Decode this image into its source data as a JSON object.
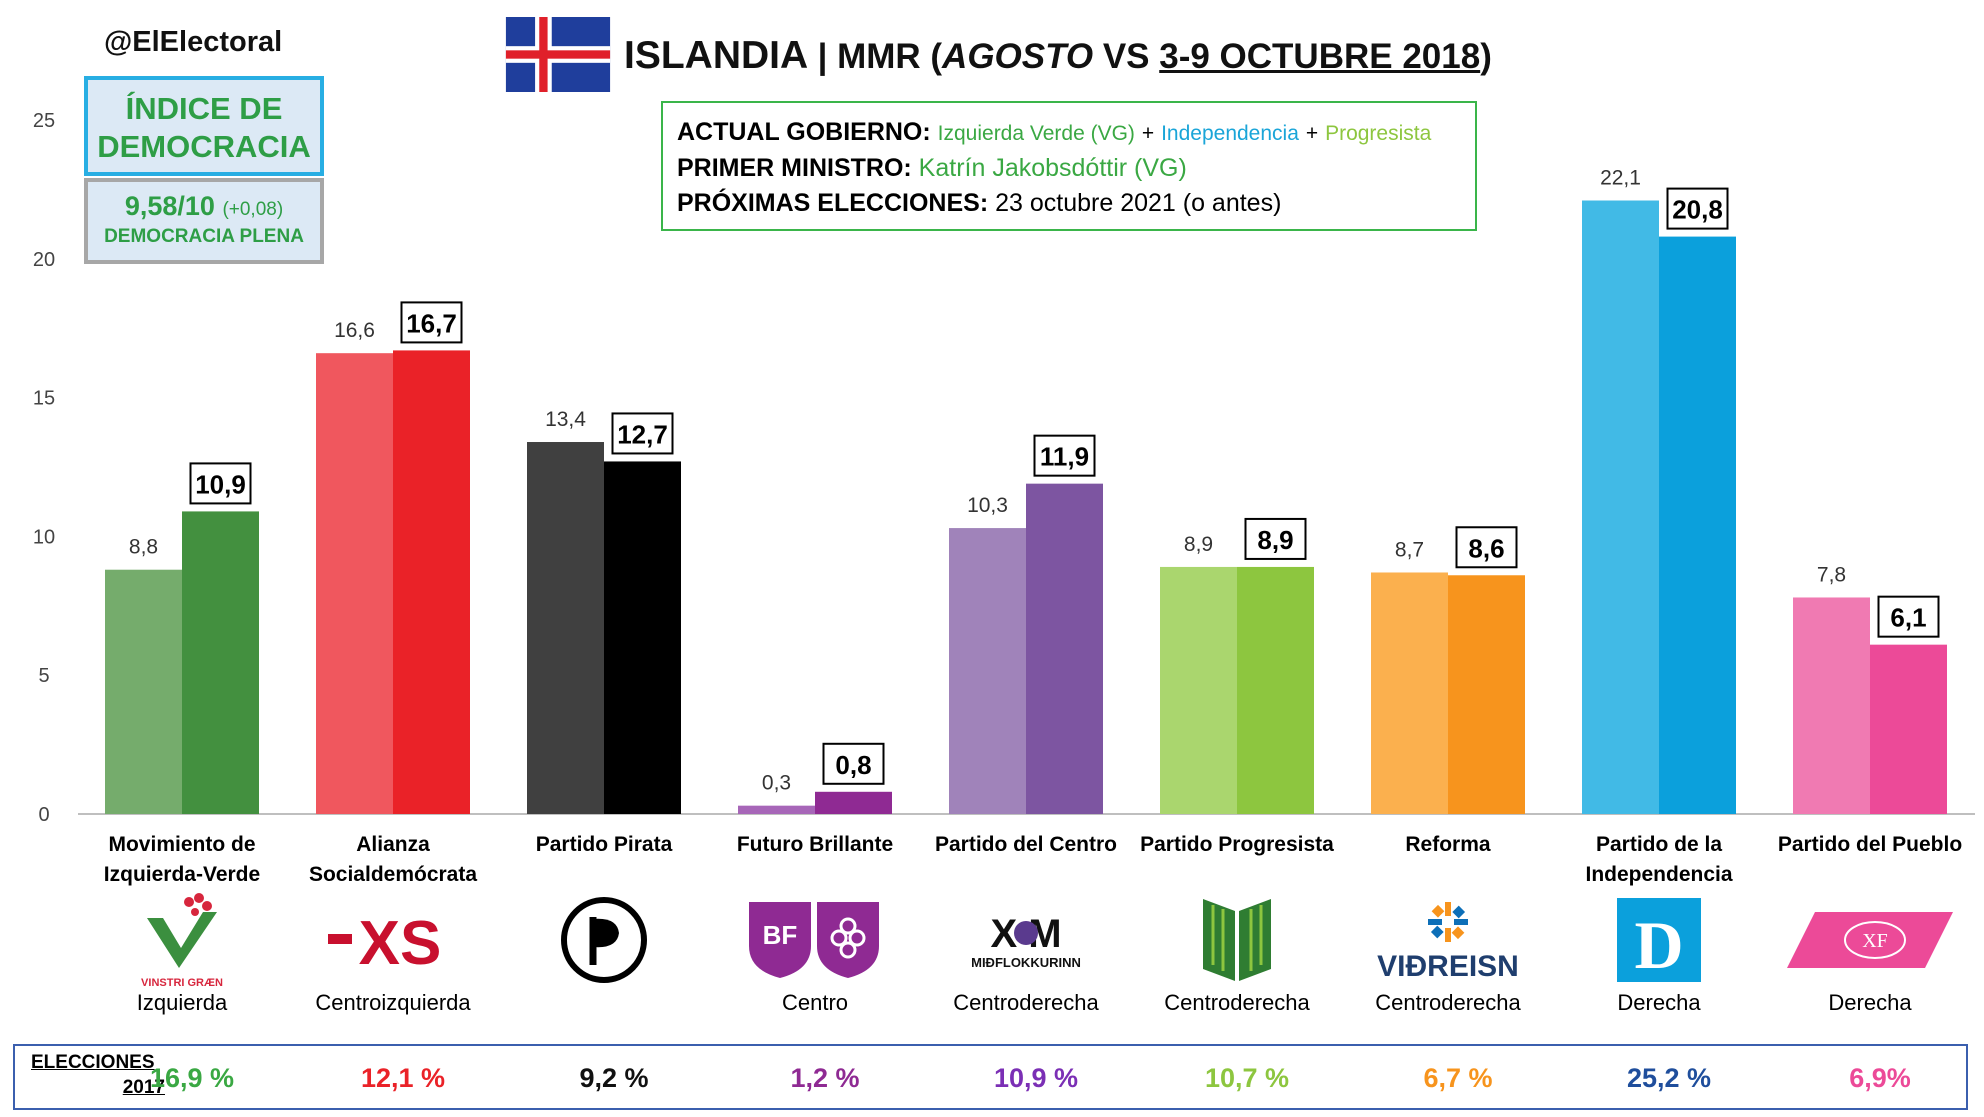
{
  "handle": "@ElElectoral",
  "header": {
    "country": "ISLANDIA",
    "pollster_prefix": "| MMR (",
    "prev_period": "AGOSTO",
    "vs": " VS ",
    "current_period": "3-9 OCTUBRE 2018",
    "close_paren": ")"
  },
  "government": {
    "gov_label": "ACTUAL GOBIERNO:",
    "gov_party_1": "Izquierda Verde (VG)",
    "plus": "+",
    "gov_party_2": "Independencia",
    "gov_party_3": "Progresista",
    "pm_label": "PRIMER MINISTRO:",
    "pm_value": "Katrín Jakobsdóttir (VG)",
    "next_label": "PRÓXIMAS ELECCIONES:",
    "next_value": "23 octubre 2021 (o antes)"
  },
  "democracy": {
    "title_1": "ÍNDICE DE",
    "title_2": "DEMOCRACIA",
    "score": "9,58/10",
    "change": "(+0,08)",
    "regime": "DEMOCRACIA PLENA"
  },
  "chart_data": {
    "type": "bar",
    "ylim": [
      0,
      25
    ],
    "yticks": [
      "0",
      "5",
      "10",
      "15",
      "20",
      "25"
    ],
    "grid": false,
    "series": [
      {
        "name": "AGOSTO",
        "values": [
          8.8,
          16.6,
          13.4,
          0.3,
          10.3,
          8.9,
          8.7,
          22.1,
          7.8
        ],
        "labels": [
          "8,8",
          "16,6",
          "13,4",
          "0,3",
          "10,3",
          "8,9",
          "8,7",
          "22,1",
          "7,8"
        ]
      },
      {
        "name": "3-9 OCTUBRE 2018",
        "values": [
          10.9,
          16.7,
          12.7,
          0.8,
          11.9,
          8.9,
          8.6,
          20.8,
          6.1
        ],
        "labels": [
          "10,9",
          "16,7",
          "12,7",
          "0,8",
          "11,9",
          "8,9",
          "8,6",
          "20,8",
          "6,1"
        ]
      }
    ],
    "categories": [
      {
        "name_1": "Movimiento de",
        "name_2": "Izquierda-Verde",
        "ideology": "Izquierda",
        "logo": "vinstri-graen-logo",
        "logo_text": "VINSTRI GRÆN",
        "color_prev": "#75ac6c",
        "color_curr": "#43903f",
        "elections_2017": "16,9 %",
        "elec_color": "#3aa843"
      },
      {
        "name_1": "Alianza",
        "name_2": "Socialdemócrata",
        "ideology": "Centroizquierda",
        "logo": "xs-logo",
        "logo_text": "XS",
        "color_prev": "#f0575e",
        "color_curr": "#ea2228",
        "elections_2017": "12,1 %",
        "elec_color": "#ea2228"
      },
      {
        "name_1": "Partido Pirata",
        "name_2": "",
        "ideology": "",
        "logo": "pirate-flag-logo",
        "logo_text": "",
        "color_prev": "#404040",
        "color_curr": "#000000",
        "elections_2017": "9,2 %",
        "elec_color": "#111111"
      },
      {
        "name_1": "Futuro Brillante",
        "name_2": "",
        "ideology": "Centro",
        "logo": "bf-logo",
        "logo_text": "BF",
        "color_prev": "#a766b8",
        "color_curr": "#8f2a93",
        "elections_2017": "1,2 %",
        "elec_color": "#8f2a93"
      },
      {
        "name_1": "Partido del Centro",
        "name_2": "",
        "ideology": "Centroderecha",
        "logo": "midflokkurinn-logo",
        "logo_text": "MIÐFLOKKURINN",
        "color_prev": "#a083ba",
        "color_curr": "#7d55a1",
        "elections_2017": "10,9 %",
        "elec_color": "#7b2fb5"
      },
      {
        "name_1": "Partido Progresista",
        "name_2": "",
        "ideology": "Centroderecha",
        "logo": "progressive-book-logo",
        "logo_text": "",
        "color_prev": "#aad66e",
        "color_curr": "#8dc63f",
        "elections_2017": "10,7 %",
        "elec_color": "#8dc63f"
      },
      {
        "name_1": "Reforma",
        "name_2": "",
        "ideology": "Centroderecha",
        "logo": "vidreisn-logo",
        "logo_text": "VIÐREISN",
        "color_prev": "#fbb04e",
        "color_curr": "#f7941d",
        "elections_2017": "6,7 %",
        "elec_color": "#f7941d"
      },
      {
        "name_1": "Partido de la",
        "name_2": "Independencia",
        "ideology": "Derecha",
        "logo": "d-logo",
        "logo_text": "D",
        "color_prev": "#41bae6",
        "color_curr": "#0ba0dc",
        "elections_2017": "25,2 %",
        "elec_color": "#1f4e9c"
      },
      {
        "name_1": "Partido del Pueblo",
        "name_2": "",
        "ideology": "Derecha",
        "logo": "flokkur-folksins-logo",
        "logo_text": "XF",
        "color_prev": "#f07ab2",
        "color_curr": "#ec4a98",
        "elections_2017": "6,9%",
        "elec_color": "#ec4a98"
      }
    ]
  },
  "elections": {
    "label_1": "ELECCIONES",
    "label_2": "2017"
  }
}
